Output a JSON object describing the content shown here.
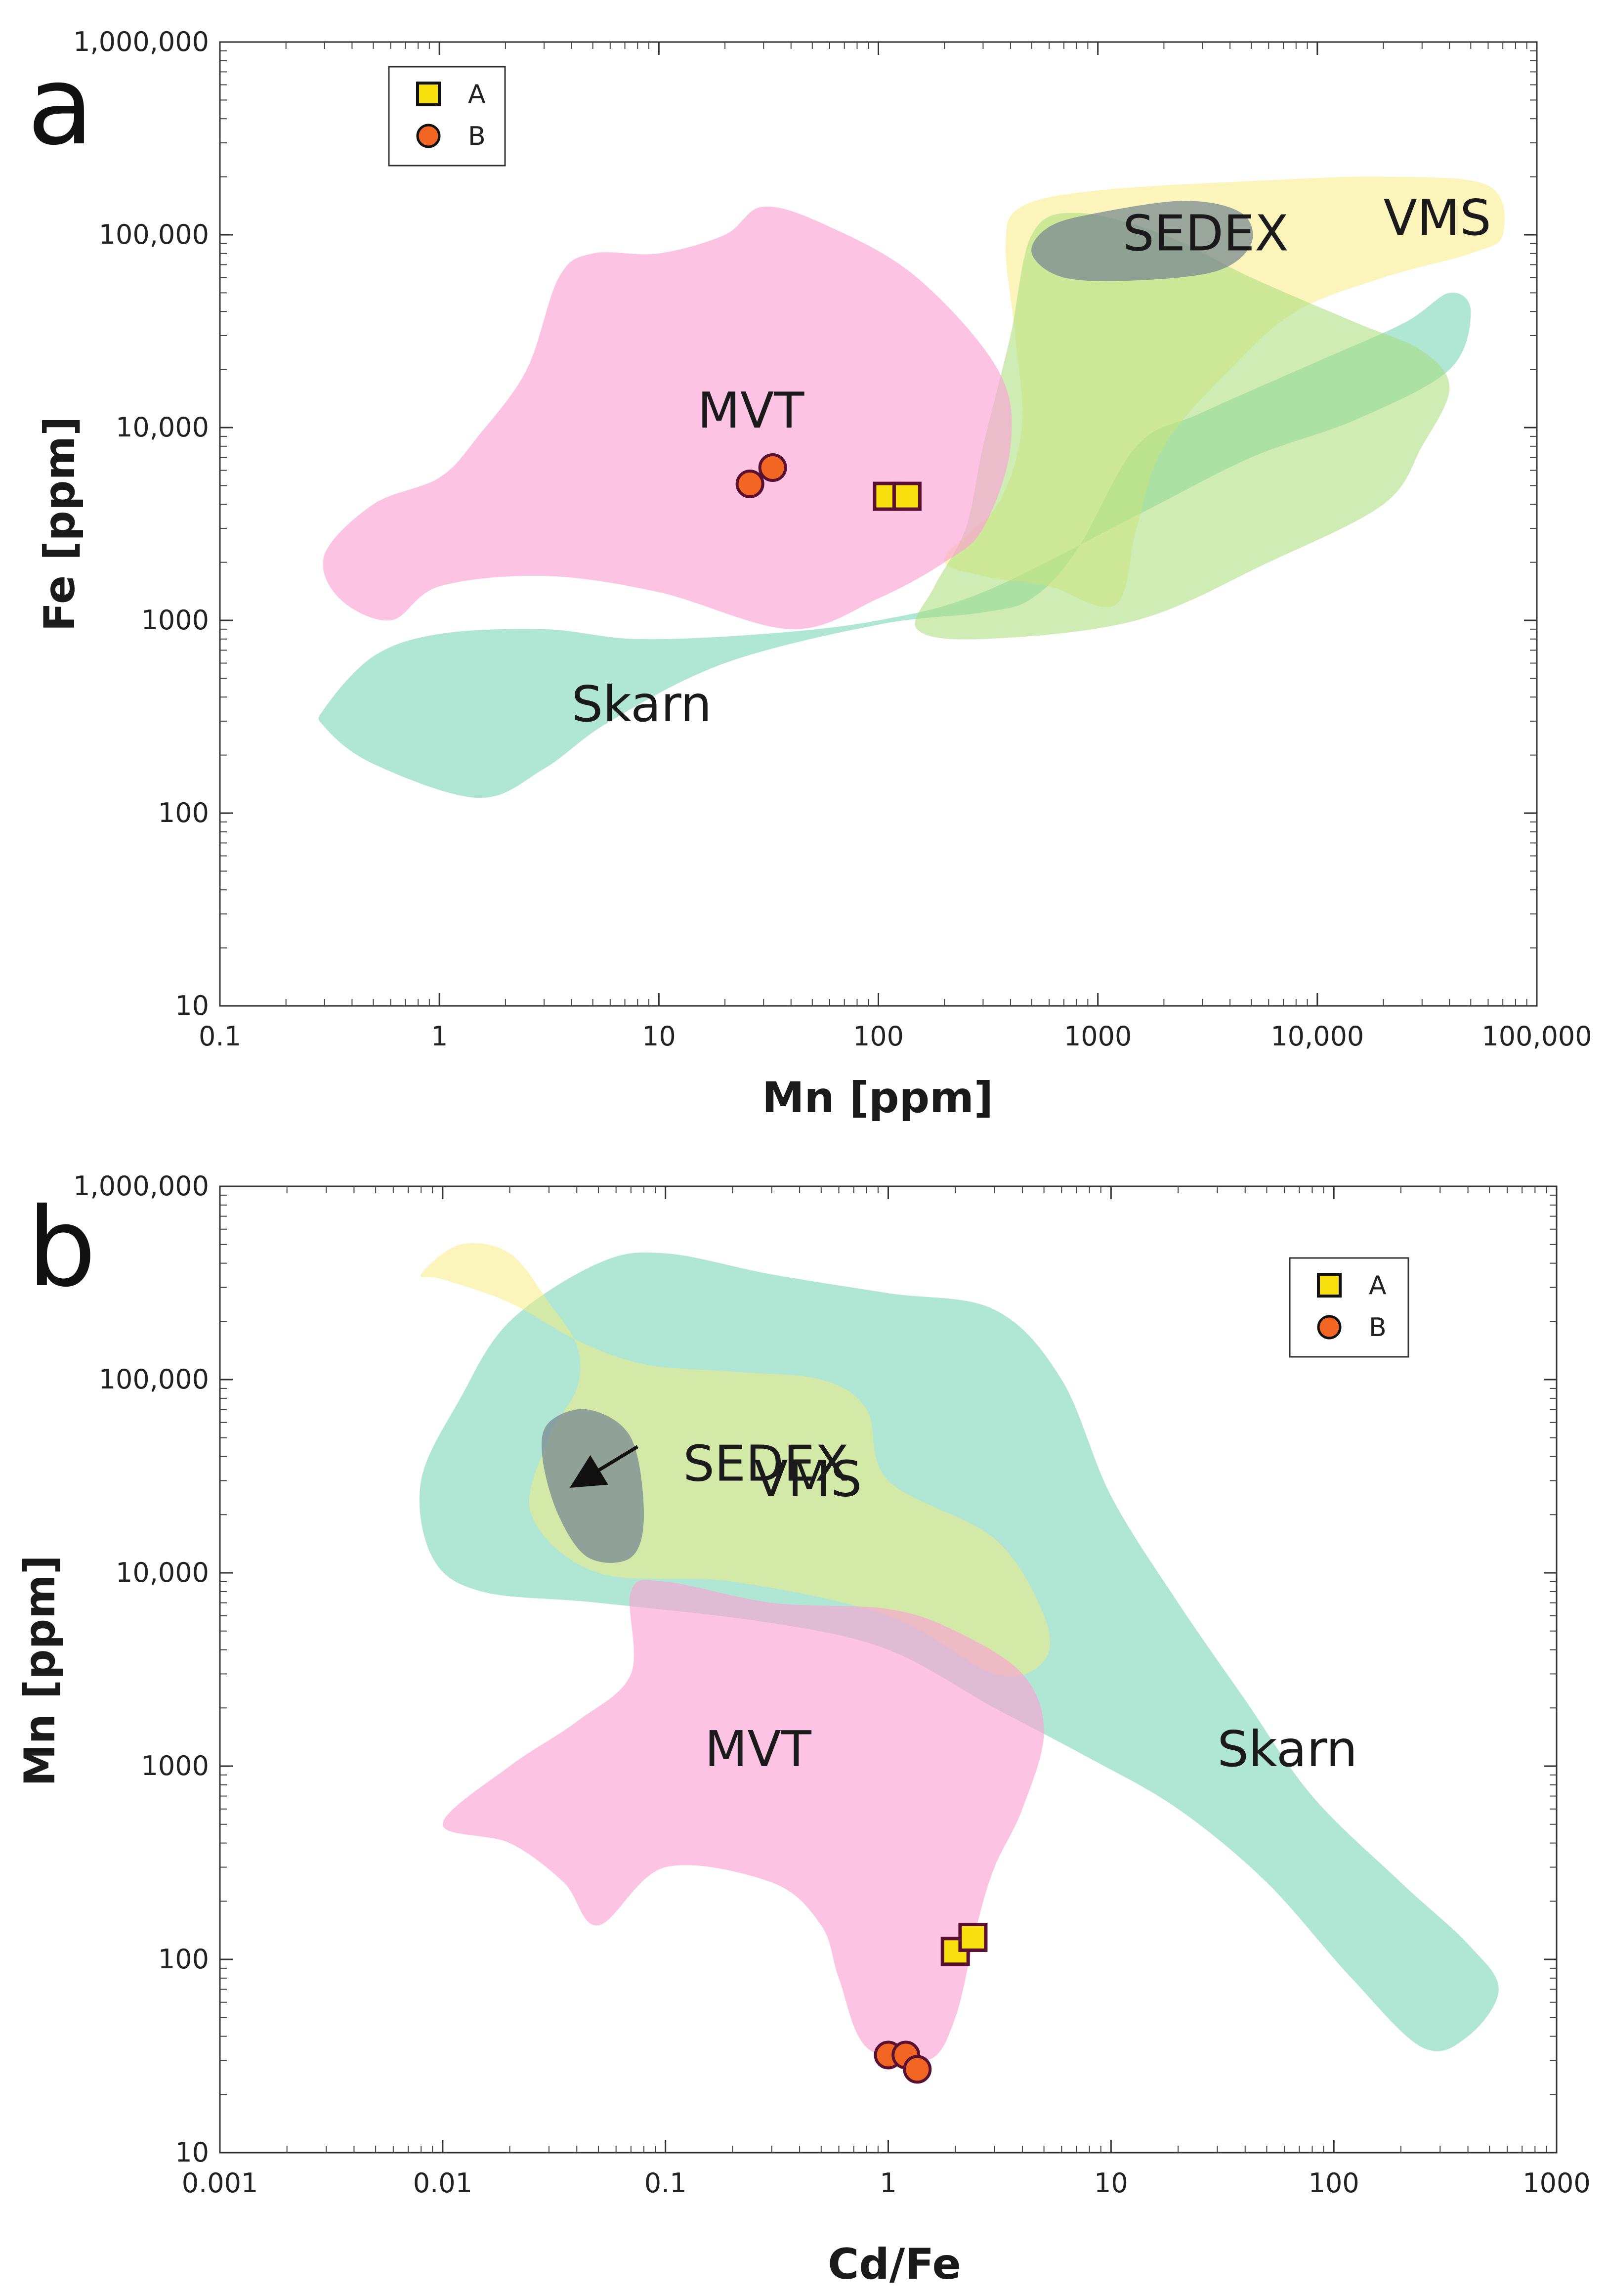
{
  "chart_data": [
    {
      "panel": "a",
      "type": "scatter",
      "x_scale": "log",
      "y_scale": "log",
      "xlabel": "Mn [ppm]",
      "ylabel": "Fe [ppm]",
      "xlim": [
        0.1,
        100000
      ],
      "ylim": [
        10,
        1000000
      ],
      "x_ticks": [
        {
          "value": 0.1,
          "label": "0.1"
        },
        {
          "value": 1,
          "label": "1"
        },
        {
          "value": 10,
          "label": "10"
        },
        {
          "value": 100,
          "label": "100"
        },
        {
          "value": 1000,
          "label": "1000"
        },
        {
          "value": 10000,
          "label": "10,000"
        },
        {
          "value": 100000,
          "label": "100,000"
        }
      ],
      "y_ticks": [
        {
          "value": 10,
          "label": "10"
        },
        {
          "value": 100,
          "label": "100"
        },
        {
          "value": 1000,
          "label": "1000"
        },
        {
          "value": 10000,
          "label": "10,000"
        },
        {
          "value": 100000,
          "label": "100,000"
        },
        {
          "value": 1000000,
          "label": "1,000,000"
        }
      ],
      "legend": {
        "position": "top-left",
        "entries": [
          "A",
          "B"
        ]
      },
      "series": [
        {
          "name": "A",
          "marker": "square",
          "color": "#f7e00e",
          "edge": "#5a1030",
          "points": [
            [
              110,
              4400
            ],
            [
              135,
              4400
            ]
          ]
        },
        {
          "name": "B",
          "marker": "circle",
          "color": "#f26522",
          "edge": "#5a1030",
          "points": [
            [
              26,
              5100
            ],
            [
              33,
              6200
            ]
          ]
        }
      ],
      "fields": [
        {
          "name": "Skarn",
          "label": "Skarn",
          "color": "#5fcfaa",
          "opacity": 0.5,
          "label_at": [
            4,
            300
          ],
          "outline": [
            [
              0.3,
              350
            ],
            [
              0.5,
              650
            ],
            [
              1,
              850
            ],
            [
              3,
              900
            ],
            [
              8,
              800
            ],
            [
              30,
              850
            ],
            [
              100,
              1000
            ],
            [
              300,
              1400
            ],
            [
              1500,
              3500
            ],
            [
              5000,
              7000
            ],
            [
              15000,
              11000
            ],
            [
              40000,
              20000
            ],
            [
              50000,
              40000
            ],
            [
              40000,
              50000
            ],
            [
              25000,
              35000
            ],
            [
              10000,
              22000
            ],
            [
              3000,
              12000
            ],
            [
              1500,
              8000
            ],
            [
              800,
              2300
            ],
            [
              500,
              1300
            ],
            [
              300,
              1100
            ],
            [
              100,
              950
            ],
            [
              20,
              600
            ],
            [
              6,
              300
            ],
            [
              3,
              170
            ],
            [
              1.5,
              120
            ],
            [
              0.5,
              180
            ],
            [
              0.3,
              280
            ]
          ]
        },
        {
          "name": "VMS",
          "label": "VMS",
          "color": "#f8ec7a",
          "opacity": 0.5,
          "label_at": [
            20000,
            100000
          ],
          "outline": [
            [
              1200,
              1200
            ],
            [
              600,
              1500
            ],
            [
              300,
              1700
            ],
            [
              200,
              2100
            ],
            [
              350,
              4000
            ],
            [
              450,
              10000
            ],
            [
              420,
              30000
            ],
            [
              380,
              90000
            ],
            [
              450,
              140000
            ],
            [
              1000,
              170000
            ],
            [
              5000,
              190000
            ],
            [
              20000,
              200000
            ],
            [
              60000,
              180000
            ],
            [
              70000,
              100000
            ],
            [
              50000,
              80000
            ],
            [
              20000,
              60000
            ],
            [
              8000,
              40000
            ],
            [
              4000,
              20000
            ],
            [
              2000,
              8000
            ],
            [
              1500,
              3000
            ]
          ]
        },
        {
          "name": "VMS-inner",
          "label": "",
          "color": "#a8dc78",
          "opacity": 0.55,
          "label_at": null,
          "outline": [
            [
              150,
              900
            ],
            [
              300,
              800
            ],
            [
              1500,
              1000
            ],
            [
              6000,
              2000
            ],
            [
              20000,
              4000
            ],
            [
              30000,
              8000
            ],
            [
              40000,
              16000
            ],
            [
              30000,
              25000
            ],
            [
              15000,
              35000
            ],
            [
              5000,
              60000
            ],
            [
              2000,
              100000
            ],
            [
              800,
              130000
            ],
            [
              500,
              100000
            ],
            [
              400,
              30000
            ],
            [
              300,
              8000
            ],
            [
              250,
              3000
            ],
            [
              180,
              1500
            ]
          ]
        },
        {
          "name": "MVT",
          "label": "MVT",
          "color": "#fba3d4",
          "opacity": 0.65,
          "label_at": [
            15,
            10000
          ],
          "outline": [
            [
              0.3,
              2200
            ],
            [
              0.5,
              4000
            ],
            [
              1,
              5500
            ],
            [
              1.5,
              9000
            ],
            [
              2.5,
              20000
            ],
            [
              3.5,
              60000
            ],
            [
              5,
              80000
            ],
            [
              10,
              80000
            ],
            [
              20,
              100000
            ],
            [
              30,
              140000
            ],
            [
              60,
              110000
            ],
            [
              150,
              60000
            ],
            [
              350,
              20000
            ],
            [
              400,
              8000
            ],
            [
              300,
              3000
            ],
            [
              200,
              2000
            ],
            [
              100,
              1300
            ],
            [
              40,
              900
            ],
            [
              10,
              1400
            ],
            [
              3,
              1700
            ],
            [
              1,
              1500
            ],
            [
              0.6,
              1000
            ],
            [
              0.35,
              1300
            ]
          ]
        },
        {
          "name": "SEDEX",
          "label": "SEDEX",
          "color": "#7a8a92",
          "opacity": 0.75,
          "label_at": [
            1300,
            83000
          ],
          "outline": [
            [
              500,
              80000
            ],
            [
              700,
              60000
            ],
            [
              1500,
              58000
            ],
            [
              3500,
              65000
            ],
            [
              5000,
              90000
            ],
            [
              4500,
              130000
            ],
            [
              2500,
              150000
            ],
            [
              1000,
              130000
            ],
            [
              600,
              110000
            ]
          ]
        }
      ]
    },
    {
      "panel": "b",
      "type": "scatter",
      "x_scale": "log",
      "y_scale": "log",
      "xlabel": "Cd/Fe",
      "ylabel": "Mn [ppm]",
      "xlim": [
        0.001,
        1000
      ],
      "ylim": [
        10,
        1000000
      ],
      "x_ticks": [
        {
          "value": 0.001,
          "label": "0.001"
        },
        {
          "value": 0.01,
          "label": "0.01"
        },
        {
          "value": 0.1,
          "label": "0.1"
        },
        {
          "value": 1,
          "label": "1"
        },
        {
          "value": 10,
          "label": "10"
        },
        {
          "value": 100,
          "label": "100"
        },
        {
          "value": 1000,
          "label": "1000"
        }
      ],
      "y_ticks": [
        {
          "value": 10,
          "label": "10"
        },
        {
          "value": 100,
          "label": "100"
        },
        {
          "value": 1000,
          "label": "1000"
        },
        {
          "value": 10000,
          "label": "10,000"
        },
        {
          "value": 100000,
          "label": "100,000"
        },
        {
          "value": 1000000,
          "label": "1,000,000"
        }
      ],
      "legend": {
        "position": "top-right",
        "entries": [
          "A",
          "B"
        ]
      },
      "series": [
        {
          "name": "A",
          "marker": "square",
          "color": "#f7e00e",
          "edge": "#5a1030",
          "points": [
            [
              2.0,
              110
            ],
            [
              2.4,
              130
            ]
          ]
        },
        {
          "name": "B",
          "marker": "circle",
          "color": "#f26522",
          "edge": "#5a1030",
          "points": [
            [
              1.0,
              32
            ],
            [
              1.2,
              32
            ],
            [
              1.35,
              27
            ]
          ]
        }
      ],
      "fields": [
        {
          "name": "Skarn",
          "label": "Skarn",
          "color": "#5fcfaa",
          "opacity": 0.5,
          "label_at": [
            30,
            1000
          ],
          "outline": [
            [
              0.008,
              30000
            ],
            [
              0.009,
              12000
            ],
            [
              0.015,
              8000
            ],
            [
              0.05,
              7000
            ],
            [
              0.3,
              5500
            ],
            [
              1,
              4000
            ],
            [
              3,
              2000
            ],
            [
              8,
              1100
            ],
            [
              20,
              600
            ],
            [
              50,
              250
            ],
            [
              120,
              80
            ],
            [
              250,
              35
            ],
            [
              400,
              40
            ],
            [
              550,
              70
            ],
            [
              400,
              120
            ],
            [
              200,
              250
            ],
            [
              80,
              700
            ],
            [
              40,
              2200
            ],
            [
              20,
              7000
            ],
            [
              10,
              25000
            ],
            [
              6,
              100000
            ],
            [
              3,
              230000
            ],
            [
              1,
              280000
            ],
            [
              0.3,
              350000
            ],
            [
              0.1,
              450000
            ],
            [
              0.05,
              400000
            ],
            [
              0.02,
              200000
            ],
            [
              0.012,
              80000
            ]
          ]
        },
        {
          "name": "VMS",
          "label": "VMS",
          "color": "#f8ec7a",
          "opacity": 0.5,
          "label_at": [
            0.25,
            25000
          ],
          "outline": [
            [
              0.008,
              350000
            ],
            [
              0.012,
              500000
            ],
            [
              0.02,
              450000
            ],
            [
              0.03,
              250000
            ],
            [
              0.04,
              150000
            ],
            [
              0.04,
              90000
            ],
            [
              0.03,
              50000
            ],
            [
              0.025,
              20000
            ],
            [
              0.05,
              10000
            ],
            [
              0.2,
              9000
            ],
            [
              1,
              6000
            ],
            [
              3,
              3000
            ],
            [
              5,
              3500
            ],
            [
              5,
              6000
            ],
            [
              3,
              15000
            ],
            [
              1,
              30000
            ],
            [
              0.8,
              70000
            ],
            [
              0.5,
              100000
            ],
            [
              0.2,
              110000
            ],
            [
              0.08,
              120000
            ],
            [
              0.04,
              160000
            ],
            [
              0.02,
              250000
            ],
            [
              0.01,
              330000
            ]
          ]
        },
        {
          "name": "MVT",
          "label": "MVT",
          "color": "#fba3d4",
          "opacity": 0.65,
          "label_at": [
            0.15,
            1000
          ],
          "outline": [
            [
              0.01,
              500
            ],
            [
              0.02,
              1000
            ],
            [
              0.04,
              1700
            ],
            [
              0.07,
              3000
            ],
            [
              0.07,
              8000
            ],
            [
              0.1,
              9000
            ],
            [
              0.3,
              7000
            ],
            [
              1,
              6500
            ],
            [
              2,
              5000
            ],
            [
              4,
              3000
            ],
            [
              5,
              1500
            ],
            [
              4,
              600
            ],
            [
              3,
              300
            ],
            [
              2.5,
              150
            ],
            [
              2,
              50
            ],
            [
              1.5,
              30
            ],
            [
              0.8,
              35
            ],
            [
              0.6,
              80
            ],
            [
              0.5,
              150
            ],
            [
              0.3,
              250
            ],
            [
              0.1,
              300
            ],
            [
              0.05,
              150
            ],
            [
              0.035,
              250
            ],
            [
              0.02,
              400
            ]
          ]
        },
        {
          "name": "SEDEX",
          "label": "SEDEX",
          "color": "#7a8a92",
          "opacity": 0.75,
          "label_at": [
            0.12,
            30000
          ],
          "outline": [
            [
              0.03,
              60000
            ],
            [
              0.045,
              70000
            ],
            [
              0.07,
              50000
            ],
            [
              0.08,
              20000
            ],
            [
              0.07,
              12000
            ],
            [
              0.045,
              12000
            ],
            [
              0.033,
              20000
            ],
            [
              0.028,
              40000
            ]
          ]
        }
      ],
      "annotations": [
        {
          "type": "arrow",
          "from": [
            0.075,
            45000
          ],
          "to": [
            0.042,
            30000
          ]
        }
      ]
    }
  ],
  "panels": {
    "a": {
      "letter": "a"
    },
    "b": {
      "letter": "b"
    }
  }
}
